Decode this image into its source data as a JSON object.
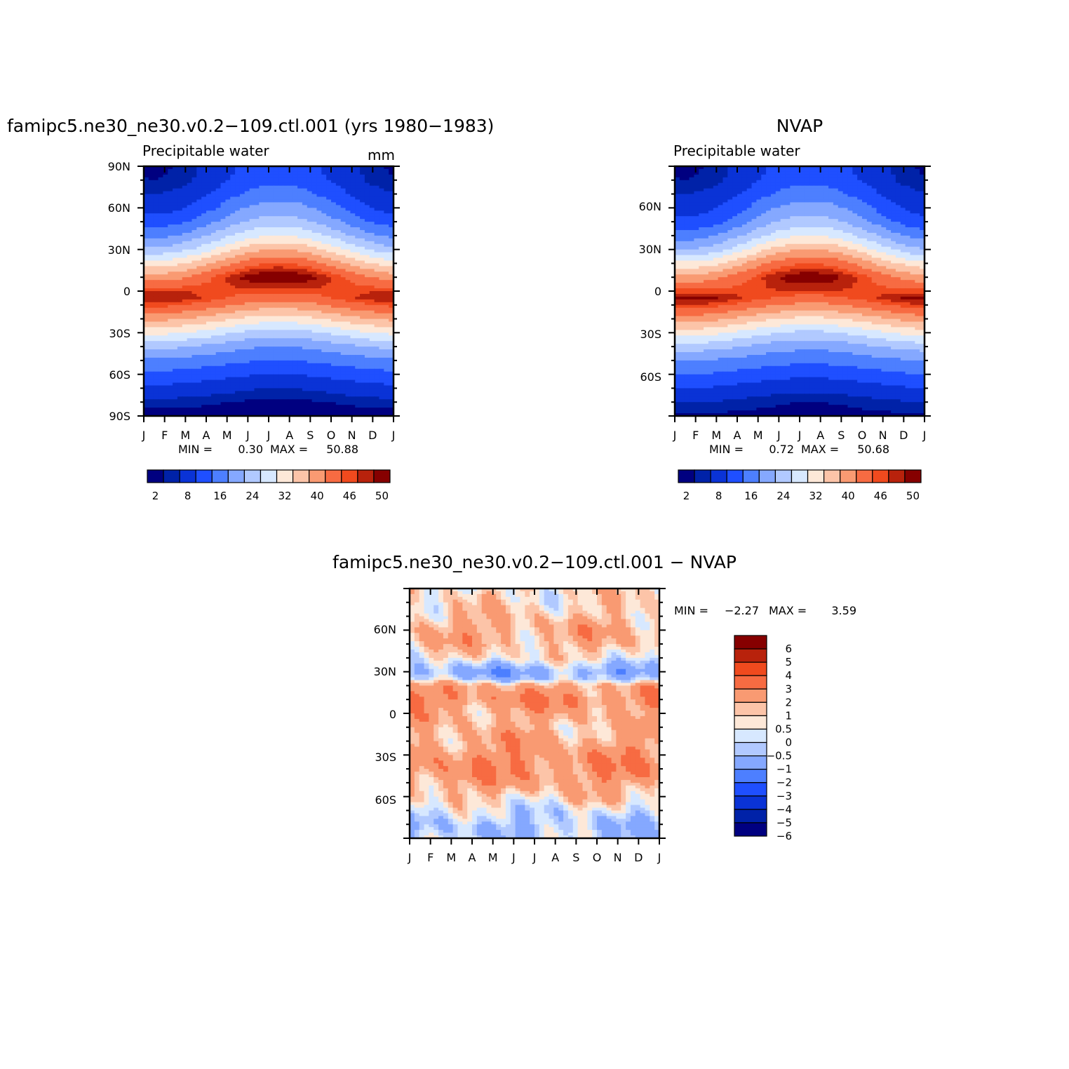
{
  "chart_data": [
    {
      "type": "heatmap",
      "title": "famipc5.ne30_ne30.v0.2−109.ctl.001 (yrs 1980−1983)",
      "left_subtitle": "Precipitable water",
      "right_subtitle": "mm",
      "x_ticks": [
        "J",
        "F",
        "M",
        "A",
        "M",
        "J",
        "J",
        "A",
        "S",
        "O",
        "N",
        "D",
        "J"
      ],
      "y_ticks": [
        "90N",
        "60N",
        "30N",
        "0",
        "30S",
        "60S",
        "90S"
      ],
      "ylim": [
        -90,
        90
      ],
      "min_label": "MIN =",
      "min_value": "0.30",
      "max_label": "MAX =",
      "max_value": "50.88",
      "contour_levels": [
        2,
        4,
        8,
        12,
        16,
        20,
        24,
        28,
        32,
        36,
        40,
        44,
        46,
        48,
        50
      ],
      "colorbar_labels": [
        "2",
        "8",
        "16",
        "24",
        "32",
        "40",
        "46",
        "50"
      ],
      "colors": [
        "#000080",
        "#0022a8",
        "#0a33d6",
        "#1f4fff",
        "#4d7fff",
        "#85a8ff",
        "#b1c9ff",
        "#d7e8ff",
        "#fde8d8",
        "#fcc4a8",
        "#f99a72",
        "#f76b42",
        "#f04a1e",
        "#b8220c",
        "#860000"
      ],
      "fields": {
        "jan": [
          [
            -90,
            1
          ],
          [
            -80,
            3
          ],
          [
            -70,
            7
          ],
          [
            -60,
            11
          ],
          [
            -50,
            15
          ],
          [
            -40,
            21
          ],
          [
            -30,
            29
          ],
          [
            -20,
            37
          ],
          [
            -10,
            45
          ],
          [
            -5,
            48
          ],
          [
            0,
            46
          ],
          [
            10,
            38
          ],
          [
            20,
            30
          ],
          [
            30,
            21
          ],
          [
            40,
            15
          ],
          [
            50,
            10
          ],
          [
            60,
            6
          ],
          [
            70,
            4
          ],
          [
            80,
            2
          ],
          [
            90,
            1.5
          ]
        ],
        "jul": [
          [
            -90,
            0.5
          ],
          [
            -80,
            1.5
          ],
          [
            -70,
            4
          ],
          [
            -60,
            8
          ],
          [
            -50,
            12
          ],
          [
            -40,
            16
          ],
          [
            -30,
            22
          ],
          [
            -20,
            30
          ],
          [
            -10,
            38
          ],
          [
            0,
            45
          ],
          [
            10,
            51
          ],
          [
            20,
            44
          ],
          [
            30,
            36
          ],
          [
            40,
            28
          ],
          [
            50,
            22
          ],
          [
            60,
            18
          ],
          [
            70,
            14
          ],
          [
            80,
            11
          ],
          [
            90,
            10
          ]
        ]
      }
    },
    {
      "type": "heatmap",
      "title": "NVAP",
      "left_subtitle": "Precipitable water",
      "x_ticks": [
        "J",
        "F",
        "M",
        "A",
        "M",
        "J",
        "J",
        "A",
        "S",
        "O",
        "N",
        "D",
        "J"
      ],
      "y_ticks": [
        "60N",
        "30N",
        "0",
        "30S",
        "60S"
      ],
      "ylim": [
        -90,
        90
      ],
      "min_label": "MIN =",
      "min_value": "0.72",
      "max_label": "MAX =",
      "max_value": "50.68",
      "contour_levels": [
        2,
        4,
        8,
        12,
        16,
        20,
        24,
        28,
        32,
        36,
        40,
        44,
        46,
        48,
        50
      ],
      "colorbar_labels": [
        "2",
        "8",
        "16",
        "24",
        "32",
        "40",
        "46",
        "50"
      ],
      "fields": {
        "jan": [
          [
            -90,
            1.5
          ],
          [
            -80,
            4
          ],
          [
            -70,
            8
          ],
          [
            -60,
            12
          ],
          [
            -50,
            16
          ],
          [
            -40,
            22
          ],
          [
            -30,
            30
          ],
          [
            -20,
            38
          ],
          [
            -10,
            46
          ],
          [
            -5,
            49
          ],
          [
            0,
            45
          ],
          [
            10,
            37
          ],
          [
            20,
            29
          ],
          [
            30,
            20
          ],
          [
            40,
            14
          ],
          [
            50,
            9
          ],
          [
            60,
            6
          ],
          [
            70,
            4
          ],
          [
            80,
            2
          ],
          [
            90,
            1.5
          ]
        ],
        "jul": [
          [
            -90,
            1
          ],
          [
            -80,
            2
          ],
          [
            -70,
            5
          ],
          [
            -60,
            9
          ],
          [
            -50,
            13
          ],
          [
            -40,
            17
          ],
          [
            -30,
            23
          ],
          [
            -20,
            31
          ],
          [
            -10,
            39
          ],
          [
            0,
            46
          ],
          [
            10,
            50
          ],
          [
            20,
            44
          ],
          [
            30,
            36
          ],
          [
            40,
            28
          ],
          [
            50,
            22
          ],
          [
            60,
            18
          ],
          [
            70,
            14
          ],
          [
            80,
            11
          ],
          [
            90,
            10
          ]
        ]
      }
    },
    {
      "type": "heatmap",
      "title": "famipc5.ne30_ne30.v0.2−109.ctl.001 − NVAP",
      "x_ticks": [
        "J",
        "F",
        "M",
        "A",
        "M",
        "J",
        "J",
        "A",
        "S",
        "O",
        "N",
        "D",
        "J"
      ],
      "y_ticks": [
        "60N",
        "30N",
        "0",
        "30S",
        "60S"
      ],
      "ylim": [
        -90,
        90
      ],
      "min_label": "MIN =",
      "min_value": "−2.27",
      "max_label": "MAX =",
      "max_value": "3.59",
      "contour_levels": [
        -6,
        -5,
        -4,
        -3,
        -2,
        -1,
        -0.5,
        0,
        0.5,
        1,
        2,
        3,
        4,
        5,
        6
      ],
      "colorbar_labels": [
        "6",
        "5",
        "4",
        "3",
        "2",
        "1",
        "0.5",
        "0",
        "−0.5",
        "−1",
        "−2",
        "−3",
        "−4",
        "−5",
        "−6"
      ],
      "colors_low_to_high": [
        "#000080",
        "#0022a8",
        "#0a33d6",
        "#1f4fff",
        "#4d7fff",
        "#85a8ff",
        "#b1c9ff",
        "#d7e8ff",
        "#fde8d8",
        "#fcc4a8",
        "#f99a72",
        "#f76b42",
        "#f04a1e",
        "#b8220c",
        "#860000"
      ],
      "bands": [
        [
          -90,
          -0.7
        ],
        [
          -80,
          -0.8
        ],
        [
          -70,
          -0.3
        ],
        [
          -60,
          0.6
        ],
        [
          -50,
          1.3
        ],
        [
          -40,
          1.8
        ],
        [
          -30,
          1.6
        ],
        [
          -20,
          1.2
        ],
        [
          -10,
          0.9
        ],
        [
          0,
          1.1
        ],
        [
          10,
          1.8
        ],
        [
          20,
          1.2
        ],
        [
          25,
          -0.8
        ],
        [
          30,
          -1.3
        ],
        [
          35,
          -0.6
        ],
        [
          40,
          0.3
        ],
        [
          50,
          0.9
        ],
        [
          60,
          1.1
        ],
        [
          70,
          0.7
        ],
        [
          80,
          0.4
        ],
        [
          90,
          0.3
        ]
      ]
    }
  ]
}
